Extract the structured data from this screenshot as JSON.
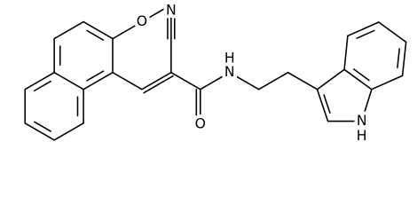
{
  "atoms": {
    "methoxy_O": "O",
    "nitrile_N": "N",
    "carbonyl_O": "O",
    "amide_N": "N",
    "amide_H": "H",
    "indole_N": "N",
    "indole_H": "H"
  }
}
